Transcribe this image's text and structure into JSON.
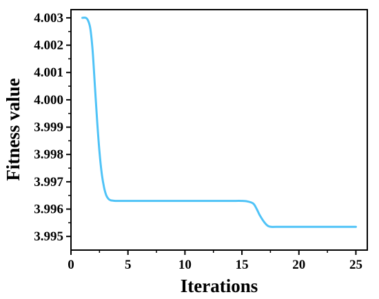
{
  "chart_data": {
    "type": "line",
    "title": "",
    "xlabel": "Iterations",
    "ylabel": "Fitness value",
    "xlim": [
      0,
      26
    ],
    "ylim": [
      3.9945,
      4.0033
    ],
    "x_ticks": [
      0,
      5,
      10,
      15,
      20,
      25
    ],
    "x_tick_labels": [
      "0",
      "5",
      "10",
      "15",
      "20",
      "25"
    ],
    "y_ticks": [
      3.995,
      3.996,
      3.997,
      3.998,
      3.999,
      4.0,
      4.001,
      4.002,
      4.003
    ],
    "y_tick_labels": [
      "3.995",
      "3.996",
      "3.997",
      "3.998",
      "3.999",
      "4.000",
      "4.001",
      "4.002",
      "4.003"
    ],
    "grid": false,
    "legend": "none",
    "series": [
      {
        "color": "#4FC3F7",
        "x": [
          1.0,
          1.3,
          1.5,
          1.7,
          1.9,
          2.1,
          2.3,
          2.5,
          2.7,
          2.9,
          3.1,
          3.3,
          3.5,
          3.7,
          3.9,
          4.5,
          6,
          8,
          10,
          12,
          14,
          15,
          15.5,
          16,
          16.3,
          16.6,
          17,
          17.3,
          17.6,
          18,
          20,
          22,
          24,
          25
        ],
        "values": [
          4.003,
          4.003,
          4.0029,
          4.0026,
          4.0018,
          4.0005,
          3.9992,
          3.9981,
          3.9973,
          3.9968,
          3.9965,
          3.99637,
          3.99632,
          3.99631,
          3.9963,
          3.9963,
          3.9963,
          3.9963,
          3.9963,
          3.9963,
          3.9963,
          3.9963,
          3.99628,
          3.9962,
          3.996,
          3.99575,
          3.9955,
          3.99538,
          3.99535,
          3.99535,
          3.99535,
          3.99535,
          3.99535,
          3.99535
        ]
      }
    ]
  }
}
